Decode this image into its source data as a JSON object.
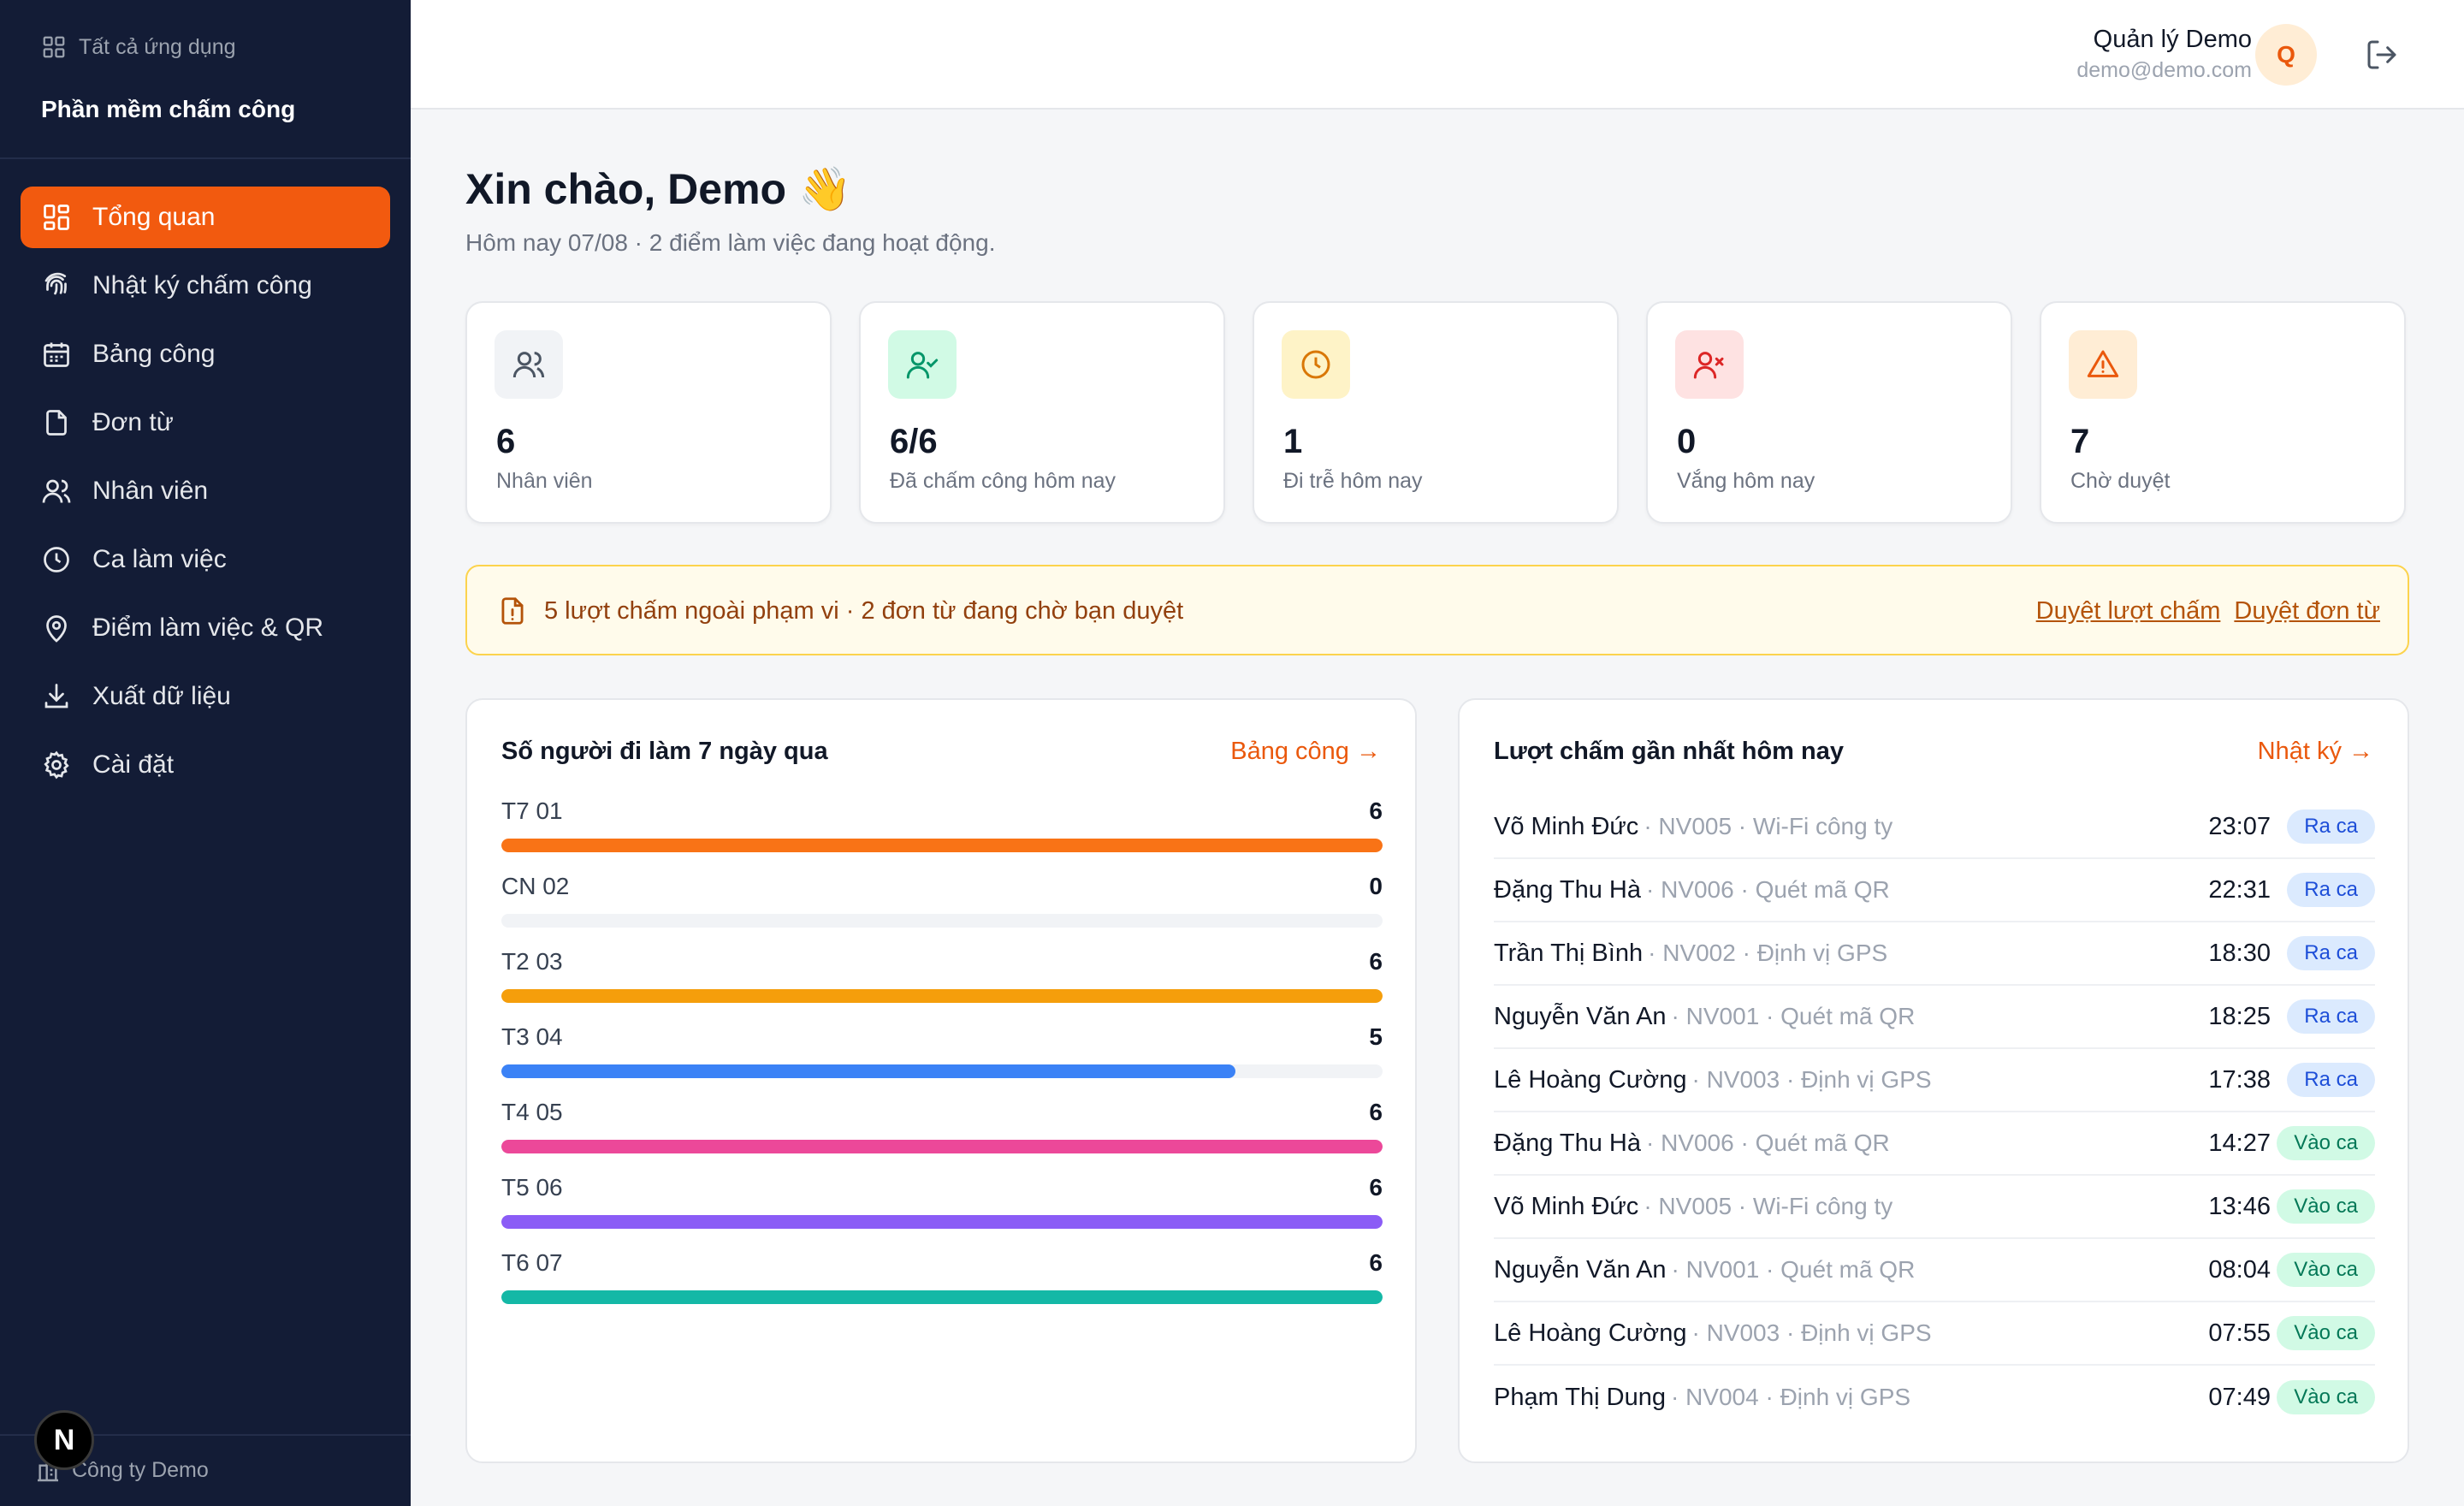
{
  "sidebar": {
    "all_apps": "Tất cả ứng dụng",
    "app_title": "Phần mềm chấm công",
    "items": [
      {
        "label": "Tổng quan",
        "icon": "grid-icon",
        "active": true
      },
      {
        "label": "Nhật ký chấm công",
        "icon": "fingerprint-icon"
      },
      {
        "label": "Bảng công",
        "icon": "calendar-icon"
      },
      {
        "label": "Đơn từ",
        "icon": "file-icon"
      },
      {
        "label": "Nhân viên",
        "icon": "users-icon"
      },
      {
        "label": "Ca làm việc",
        "icon": "clock-icon"
      },
      {
        "label": "Điểm làm việc & QR",
        "icon": "map-pin-icon"
      },
      {
        "label": "Xuất dữ liệu",
        "icon": "download-icon"
      },
      {
        "label": "Cài đặt",
        "icon": "gear-icon"
      }
    ],
    "company": "Công ty Demo",
    "badge": "N"
  },
  "header": {
    "user_name": "Quản lý Demo",
    "user_email": "demo@demo.com",
    "avatar_letter": "Q"
  },
  "main": {
    "greeting": "Xin chào, Demo 👋",
    "subtitle": "Hôm nay 07/08 · 2 điểm làm việc đang hoạt động.",
    "stats": [
      {
        "value": "6",
        "label": "Nhân viên",
        "icon": "users-icon",
        "bg": "#f1f3f6",
        "fg": "#4b5563"
      },
      {
        "value": "6/6",
        "label": "Đã chấm công hôm nay",
        "icon": "user-check-icon",
        "bg": "#d1fae5",
        "fg": "#059669"
      },
      {
        "value": "1",
        "label": "Đi trễ hôm nay",
        "icon": "clock-icon",
        "bg": "#fef3c7",
        "fg": "#d97706"
      },
      {
        "value": "0",
        "label": "Vắng hôm nay",
        "icon": "user-x-icon",
        "bg": "#fee2e2",
        "fg": "#dc2626"
      },
      {
        "value": "7",
        "label": "Chờ duyệt",
        "icon": "alert-triangle-icon",
        "bg": "#ffedd5",
        "fg": "#ea580c"
      }
    ],
    "alert": {
      "text": "5 lượt chấm ngoài phạm vi · 2 đơn từ đang chờ bạn duyệt",
      "link1": "Duyệt lượt chấm",
      "link2": "Duyệt đơn từ"
    },
    "attendance": {
      "title": "Số người đi làm 7 ngày qua",
      "link": "Bảng công →"
    },
    "recent": {
      "title": "Lượt chấm gần nhất hôm nay",
      "link": "Nhật ký →",
      "rows": [
        {
          "name": "Võ Minh Đức",
          "meta": "· NV005 · Wi-Fi công ty",
          "time": "23:07",
          "badge": "Ra ca",
          "type": "out"
        },
        {
          "name": "Đặng Thu Hà",
          "meta": "· NV006 · Quét mã QR",
          "time": "22:31",
          "badge": "Ra ca",
          "type": "out"
        },
        {
          "name": "Trần Thị Bình",
          "meta": "· NV002 · Định vị GPS",
          "time": "18:30",
          "badge": "Ra ca",
          "type": "out"
        },
        {
          "name": "Nguyễn Văn An",
          "meta": "· NV001 · Quét mã QR",
          "time": "18:25",
          "badge": "Ra ca",
          "type": "out"
        },
        {
          "name": "Lê Hoàng Cường",
          "meta": "· NV003 · Định vị GPS",
          "time": "17:38",
          "badge": "Ra ca",
          "type": "out"
        },
        {
          "name": "Đặng Thu Hà",
          "meta": "· NV006 · Quét mã QR",
          "time": "14:27",
          "badge": "Vào ca",
          "type": "in"
        },
        {
          "name": "Võ Minh Đức",
          "meta": "· NV005 · Wi-Fi công ty",
          "time": "13:46",
          "badge": "Vào ca",
          "type": "in"
        },
        {
          "name": "Nguyễn Văn An",
          "meta": "· NV001 · Quét mã QR",
          "time": "08:04",
          "badge": "Vào ca",
          "type": "in"
        },
        {
          "name": "Lê Hoàng Cường",
          "meta": "· NV003 · Định vị GPS",
          "time": "07:55",
          "badge": "Vào ca",
          "type": "in"
        },
        {
          "name": "Phạm Thị Dung",
          "meta": "· NV004 · Định vị GPS",
          "time": "07:49",
          "badge": "Vào ca",
          "type": "in"
        }
      ]
    }
  },
  "chart_data": {
    "type": "bar",
    "categories": [
      "T7 01",
      "CN 02",
      "T2 03",
      "T3 04",
      "T4 05",
      "T5 06",
      "T6 07"
    ],
    "values": [
      6,
      0,
      6,
      5,
      6,
      6,
      6
    ],
    "max": 6,
    "colors": [
      "#f97316",
      "#e5e7eb",
      "#f59e0b",
      "#3b82f6",
      "#ec4899",
      "#8b5cf6",
      "#14b8a6"
    ],
    "title": "Số người đi làm 7 ngày qua"
  }
}
